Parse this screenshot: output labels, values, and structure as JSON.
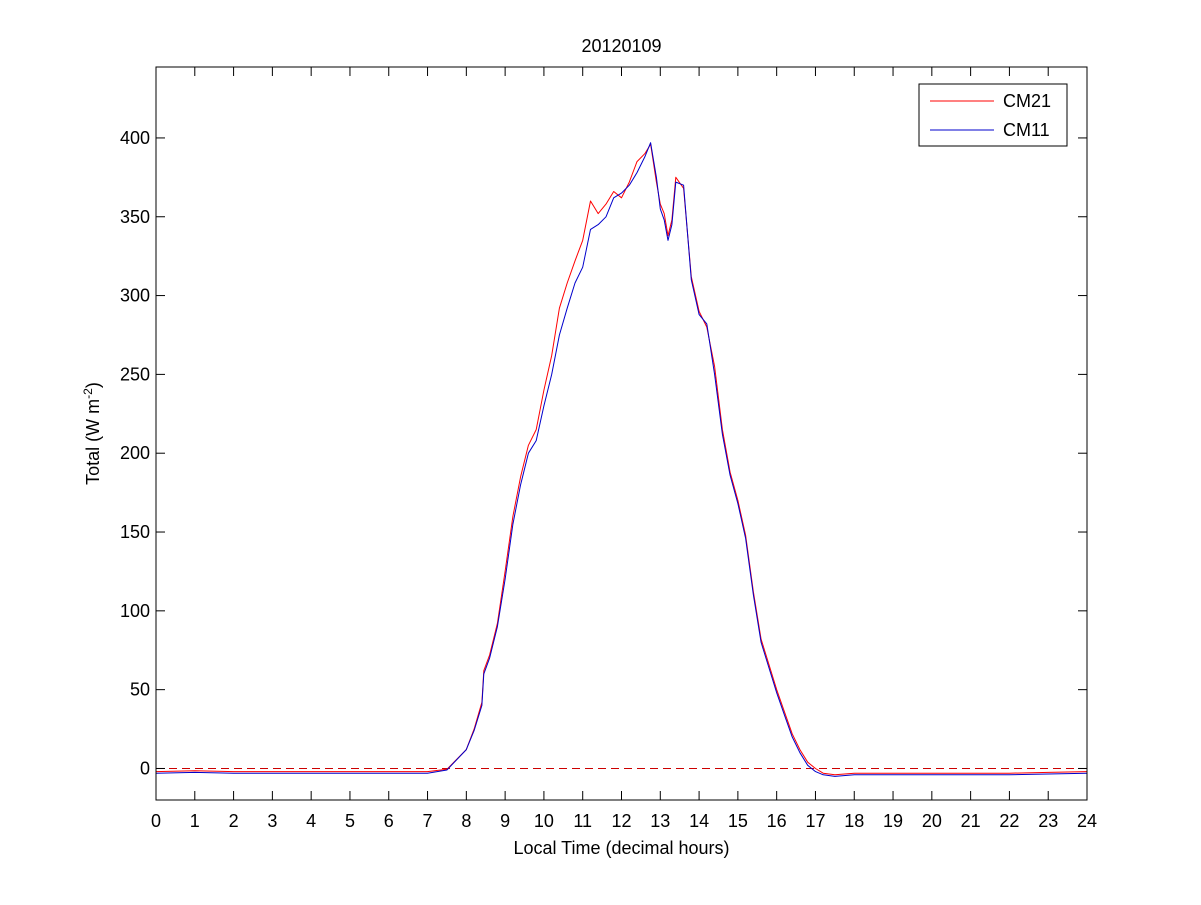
{
  "chart_data": {
    "type": "line",
    "title": "20120109",
    "xlabel": "Local Time (decimal hours)",
    "ylabel": "Total (W m-2)",
    "ylabel_main": "Total (W m",
    "ylabel_sup": "-2",
    "ylabel_close": ")",
    "xlim": [
      0,
      24
    ],
    "ylim": [
      -20,
      445
    ],
    "xticks": [
      0,
      1,
      2,
      3,
      4,
      5,
      6,
      7,
      8,
      9,
      10,
      11,
      12,
      13,
      14,
      15,
      16,
      17,
      18,
      19,
      20,
      21,
      22,
      23,
      24
    ],
    "yticks": [
      0,
      50,
      100,
      150,
      200,
      250,
      300,
      350,
      400
    ],
    "grid": false,
    "legend_position": "top-right",
    "reference_line": {
      "y": 0,
      "style": "dashed",
      "color": "#cc0000"
    },
    "series": [
      {
        "name": "CM21",
        "color": "#ff0000",
        "x": [
          0,
          1,
          2,
          3,
          4,
          5,
          6,
          7,
          7.5,
          8,
          8.2,
          8.4,
          8.45,
          8.6,
          8.8,
          9,
          9.2,
          9.4,
          9.6,
          9.8,
          10,
          10.2,
          10.4,
          10.6,
          10.8,
          11,
          11.2,
          11.4,
          11.6,
          11.8,
          12,
          12.2,
          12.4,
          12.6,
          12.75,
          12.9,
          13,
          13.1,
          13.2,
          13.3,
          13.4,
          13.6,
          13.8,
          14,
          14.2,
          14.4,
          14.6,
          14.8,
          15,
          15.2,
          15.4,
          15.6,
          15.8,
          16,
          16.2,
          16.4,
          16.6,
          16.8,
          17,
          17.2,
          17.5,
          18,
          19,
          20,
          21,
          22,
          23,
          24
        ],
        "values": [
          -2,
          -1.5,
          -2,
          -2,
          -2,
          -2,
          -2,
          -2,
          -0.5,
          12,
          25,
          42,
          62,
          72,
          92,
          125,
          160,
          185,
          205,
          215,
          240,
          262,
          292,
          308,
          322,
          335,
          360,
          352,
          358,
          366,
          362,
          372,
          385,
          390,
          396,
          372,
          358,
          352,
          338,
          348,
          375,
          368,
          312,
          290,
          280,
          255,
          215,
          188,
          170,
          148,
          112,
          82,
          66,
          50,
          36,
          22,
          12,
          4,
          0,
          -3,
          -4,
          -3,
          -3,
          -3,
          -3,
          -3,
          -2.5,
          -2
        ]
      },
      {
        "name": "CM11",
        "color": "#0000cc",
        "x": [
          0,
          1,
          2,
          3,
          4,
          5,
          6,
          7,
          7.5,
          8,
          8.2,
          8.4,
          8.45,
          8.6,
          8.8,
          9,
          9.2,
          9.4,
          9.6,
          9.8,
          10,
          10.2,
          10.4,
          10.6,
          10.8,
          11,
          11.2,
          11.4,
          11.6,
          11.8,
          12,
          12.2,
          12.4,
          12.6,
          12.75,
          12.9,
          13,
          13.1,
          13.2,
          13.3,
          13.4,
          13.6,
          13.8,
          14,
          14.2,
          14.4,
          14.6,
          14.8,
          15,
          15.2,
          15.4,
          15.6,
          15.8,
          16,
          16.2,
          16.4,
          16.6,
          16.8,
          17,
          17.2,
          17.5,
          18,
          19,
          20,
          21,
          22,
          23,
          24
        ],
        "values": [
          -3,
          -2.5,
          -3,
          -3,
          -3,
          -3,
          -3,
          -3,
          -1,
          12,
          24,
          40,
          60,
          70,
          90,
          120,
          155,
          180,
          200,
          208,
          230,
          250,
          275,
          292,
          308,
          318,
          342,
          345,
          350,
          362,
          365,
          370,
          378,
          388,
          397,
          375,
          355,
          348,
          335,
          345,
          372,
          370,
          310,
          288,
          282,
          250,
          212,
          186,
          168,
          146,
          110,
          80,
          64,
          48,
          34,
          20,
          10,
          2,
          -2,
          -4,
          -5,
          -4,
          -4,
          -4,
          -4,
          -4,
          -3.5,
          -3
        ]
      }
    ]
  }
}
